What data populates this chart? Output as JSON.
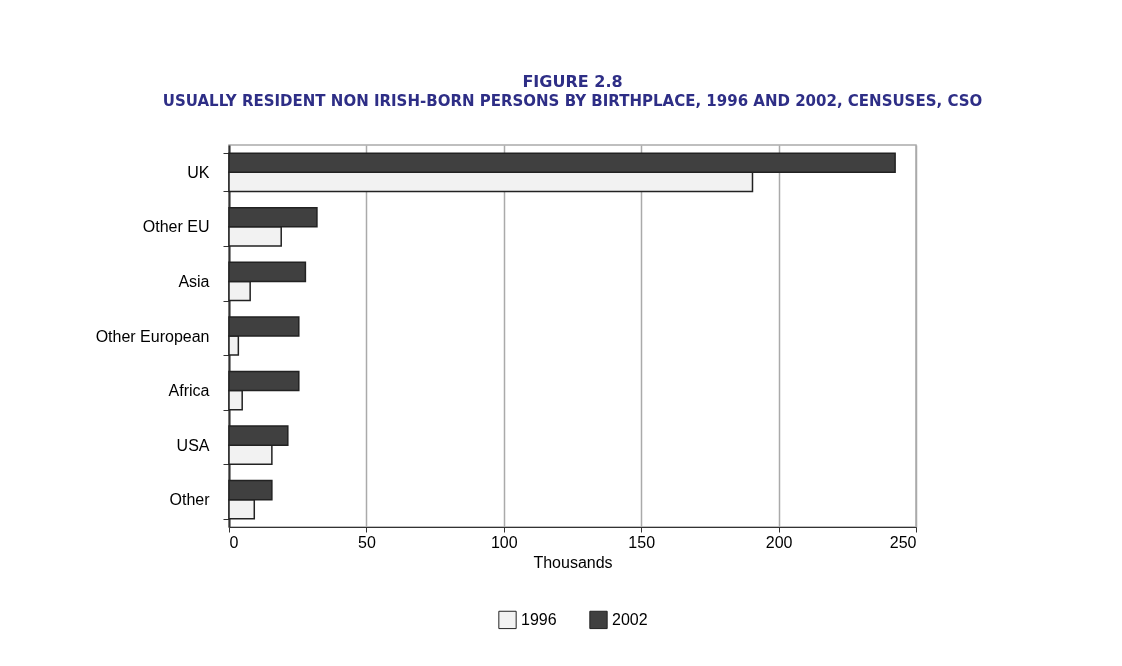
{
  "chart_data": {
    "type": "bar",
    "orientation": "horizontal",
    "title": "FIGURE 2.8",
    "subtitle": "USUALLY RESIDENT NON IRISH-BORN PERSONS BY BIRTHPLACE, 1996 AND 2002, CENSUSES, CSO",
    "xlabel": "Thousands",
    "categories": [
      "UK",
      "Other EU",
      "Asia",
      "Other European",
      "Africa",
      "USA",
      "Other"
    ],
    "series": [
      {
        "name": "1996",
        "color": "#f2f2f2",
        "values": [
          190.5,
          19,
          7.7,
          3.4,
          4.8,
          15.6,
          9.2
        ]
      },
      {
        "name": "2002",
        "color": "#404040",
        "values": [
          242.4,
          32,
          27.8,
          25.4,
          25.4,
          21.4,
          15.6
        ]
      }
    ],
    "xlim": [
      0,
      250
    ],
    "xticks": [
      0,
      50,
      100,
      150,
      200,
      250
    ],
    "grid": "x",
    "legend": "bottom"
  }
}
